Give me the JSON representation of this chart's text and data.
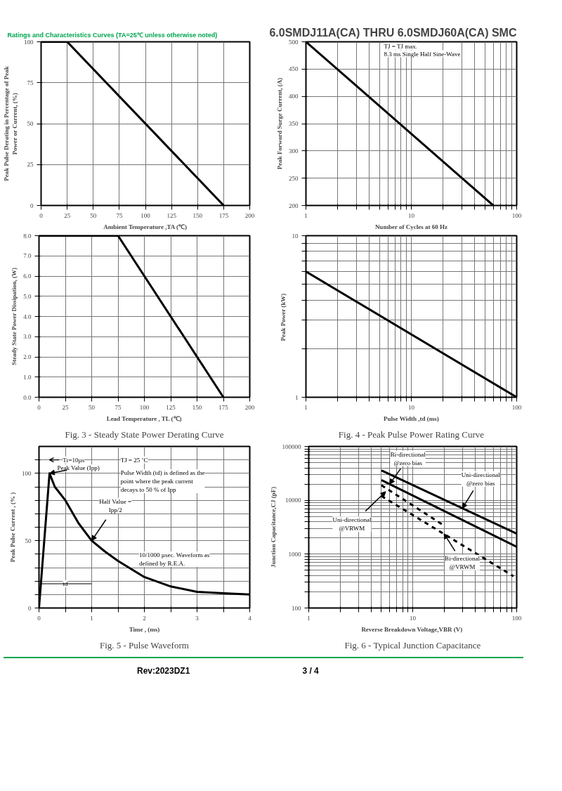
{
  "chart_data": [
    {
      "type": "line",
      "subtitle": "Ratings and Characteristics Curves (TA=25℃ unless otherwise noted)",
      "xlabel": "Ambient Temperature ,TA (℃)",
      "ylabel": "Peak Pulse Derating in Percentage of Peak Power or Current, (%)",
      "xlim": [
        0,
        200
      ],
      "xticks": [
        0,
        25,
        50,
        75,
        100,
        125,
        150,
        175,
        200
      ],
      "ylim": [
        0,
        100
      ],
      "yticks": [
        0,
        25,
        50,
        75,
        100
      ],
      "grid": true,
      "line_style": "solid",
      "series": [
        {
          "color": "#000000",
          "x": [
            0,
            25,
            175
          ],
          "values": [
            100,
            100,
            0
          ]
        }
      ]
    },
    {
      "type": "line",
      "title": "6.0SMDJ11A(CA) THRU 6.0SMDJ60A(CA) SMC",
      "xlabel": "Number of Cycles at 60 Hz",
      "ylabel": "Peak Forward Surge Current, (A)",
      "log": "x",
      "xlim": [
        1,
        100
      ],
      "xticks": [
        1,
        {
          "value": 2,
          "label": null
        },
        {
          "value": 3,
          "label": null
        },
        {
          "value": 4,
          "label": null
        },
        {
          "value": 5,
          "label": null
        },
        {
          "value": 6,
          "label": null
        },
        {
          "value": 7,
          "label": null
        },
        {
          "value": 8,
          "label": null
        },
        {
          "value": 9,
          "label": null
        },
        10,
        {
          "value": 20,
          "label": null
        },
        {
          "value": 30,
          "label": null
        },
        {
          "value": 40,
          "label": null
        },
        {
          "value": 50,
          "label": null
        },
        {
          "value": 60,
          "label": null
        },
        {
          "value": 70,
          "label": null
        },
        {
          "value": 80,
          "label": null
        },
        {
          "value": 90,
          "label": null
        },
        100
      ],
      "ylim": [
        200,
        500
      ],
      "yticks": [
        200,
        250,
        300,
        350,
        400,
        450,
        500
      ],
      "grid": true,
      "line_style": "solid",
      "annotations": [
        "TJ = TJ max.",
        "8.3 ms Single Half Sine-Wave"
      ],
      "series": [
        {
          "color": "#000000",
          "x": [
            1,
            60
          ],
          "values": [
            500,
            200
          ]
        }
      ]
    },
    {
      "type": "line",
      "title": "Fig. 3 - Steady State Power Derating Curve",
      "xlabel": "Lead Temperature , TL (℃)",
      "ylabel": "Steady State Power Dissipation, (W)",
      "xlim": [
        0,
        200
      ],
      "xticks": [
        0,
        25,
        50,
        75,
        100,
        125,
        150,
        175,
        200
      ],
      "ylim": [
        0,
        8
      ],
      "yticks": [
        {
          "value": 0,
          "label": "0.0"
        },
        {
          "value": 1,
          "label": "1.0"
        },
        {
          "value": 2,
          "label": "2.0"
        },
        {
          "value": 3,
          "label": "3.0"
        },
        {
          "value": 4,
          "label": "4.0"
        },
        {
          "value": 5,
          "label": "5.0"
        },
        {
          "value": 6,
          "label": "6.0"
        },
        {
          "value": 7,
          "label": "7.0"
        },
        {
          "value": 8,
          "label": "8.0"
        }
      ],
      "grid": true,
      "line_style": "solid",
      "series": [
        {
          "color": "#000000",
          "x": [
            0,
            75,
            175
          ],
          "values": [
            8,
            8,
            0
          ]
        }
      ]
    },
    {
      "type": "line",
      "title": "Fig. 4 - Peak Pulse Power Rating Curve",
      "xlabel": "Pulse Width ,td (ms)",
      "ylabel": "Peak Power  (kW)",
      "log": "xy",
      "xlim": [
        1,
        100
      ],
      "xticks": [
        1,
        {
          "value": 2,
          "label": null
        },
        {
          "value": 3,
          "label": null
        },
        {
          "value": 4,
          "label": null
        },
        {
          "value": 5,
          "label": null
        },
        {
          "value": 6,
          "label": null
        },
        {
          "value": 7,
          "label": null
        },
        {
          "value": 8,
          "label": null
        },
        {
          "value": 9,
          "label": null
        },
        10,
        {
          "value": 20,
          "label": null
        },
        {
          "value": 30,
          "label": null
        },
        {
          "value": 40,
          "label": null
        },
        {
          "value": 50,
          "label": null
        },
        {
          "value": 60,
          "label": null
        },
        {
          "value": 70,
          "label": null
        },
        {
          "value": 80,
          "label": null
        },
        {
          "value": 90,
          "label": null
        },
        100
      ],
      "ylim": [
        1,
        10
      ],
      "yticks": [
        1,
        {
          "value": 2,
          "label": null
        },
        {
          "value": 3,
          "label": null
        },
        {
          "value": 4,
          "label": null
        },
        {
          "value": 5,
          "label": null
        },
        {
          "value": 6,
          "label": null
        },
        {
          "value": 7,
          "label": null
        },
        {
          "value": 8,
          "label": null
        },
        {
          "value": 9,
          "label": null
        },
        10
      ],
      "grid": true,
      "line_style": "solid",
      "series": [
        {
          "color": "#000000",
          "x": [
            1,
            100
          ],
          "values": [
            6,
            1
          ]
        }
      ]
    },
    {
      "type": "line",
      "title": "Fig. 5 - Pulse Waveform",
      "xlabel": "Time , (ms)",
      "ylabel": "Peak Pulse Current , (% )",
      "xlim": [
        0,
        4
      ],
      "xticks": [
        0,
        {
          "value": 0.5,
          "label": null
        },
        1,
        {
          "value": 1.5,
          "label": null
        },
        2,
        {
          "value": 2.5,
          "label": null
        },
        3,
        {
          "value": 3.5,
          "label": null
        },
        4
      ],
      "ylim": [
        0,
        120
      ],
      "yticks": [
        0,
        {
          "value": 10,
          "label": null
        },
        {
          "value": 20,
          "label": null
        },
        {
          "value": 30,
          "label": null
        },
        {
          "value": 40,
          "label": null
        },
        50,
        {
          "value": 60,
          "label": null
        },
        {
          "value": 70,
          "label": null
        },
        {
          "value": 80,
          "label": null
        },
        {
          "value": 90,
          "label": null
        },
        100,
        {
          "value": 110,
          "label": null
        }
      ],
      "grid": true,
      "line_style": "solid",
      "annotations": [
        "Tr=10µs",
        "TJ = 25 ˚C",
        "Pulse Width (td) is defined as the point where the peak current decays to 50 % of Ipp",
        "10/1000 µsec. Waveform as defined by R.E.A.",
        "td",
        {
          "text": "Peak Value (Ipp)",
          "x": 0.2,
          "y": 100
        },
        {
          "text": "Half Value = Ipp/2",
          "x": 1,
          "y": 50
        }
      ],
      "series": [
        {
          "color": "#000000",
          "x": [
            0,
            0.2,
            0.3,
            0.5,
            0.75,
            1,
            1.25,
            1.5,
            2,
            2.5,
            3,
            3.5,
            4
          ],
          "values": [
            0,
            100,
            90,
            80,
            63,
            50,
            42,
            35,
            23,
            16,
            12,
            11,
            10
          ]
        }
      ]
    },
    {
      "type": "line",
      "title": "Fig. 6 - Typical Junction Capacitance",
      "xlabel": "Reverse  Breakdown Voltage,VBR (V)",
      "ylabel": "Junction Capacitance,CJ (pF)",
      "log": "xy",
      "xlim": [
        1,
        100
      ],
      "xticks": [
        1,
        {
          "value": 2,
          "label": null
        },
        {
          "value": 3,
          "label": null
        },
        {
          "value": 4,
          "label": null
        },
        {
          "value": 5,
          "label": null
        },
        {
          "value": 6,
          "label": null
        },
        {
          "value": 7,
          "label": null
        },
        {
          "value": 8,
          "label": null
        },
        {
          "value": 9,
          "label": null
        },
        10,
        {
          "value": 20,
          "label": null
        },
        {
          "value": 30,
          "label": null
        },
        {
          "value": 40,
          "label": null
        },
        {
          "value": 50,
          "label": null
        },
        {
          "value": 60,
          "label": null
        },
        {
          "value": 70,
          "label": null
        },
        {
          "value": 80,
          "label": null
        },
        {
          "value": 90,
          "label": null
        },
        100
      ],
      "ylim": [
        100,
        100000
      ],
      "yticks": [
        100,
        {
          "value": 200,
          "label": null
        },
        {
          "value": 300,
          "label": null
        },
        {
          "value": 400,
          "label": null
        },
        {
          "value": 500,
          "label": null
        },
        {
          "value": 600,
          "label": null
        },
        {
          "value": 700,
          "label": null
        },
        {
          "value": 800,
          "label": null
        },
        {
          "value": 900,
          "label": null
        },
        1000,
        {
          "value": 2000,
          "label": null
        },
        {
          "value": 3000,
          "label": null
        },
        {
          "value": 4000,
          "label": null
        },
        {
          "value": 5000,
          "label": null
        },
        {
          "value": 6000,
          "label": null
        },
        {
          "value": 7000,
          "label": null
        },
        {
          "value": 8000,
          "label": null
        },
        {
          "value": 9000,
          "label": null
        },
        10000,
        {
          "value": 20000,
          "label": null
        },
        {
          "value": 30000,
          "label": null
        },
        {
          "value": 40000,
          "label": null
        },
        {
          "value": 50000,
          "label": null
        },
        {
          "value": 60000,
          "label": null
        },
        {
          "value": 70000,
          "label": null
        },
        {
          "value": 80000,
          "label": null
        },
        {
          "value": 90000,
          "label": null
        },
        100000
      ],
      "grid": true,
      "annotations": [
        {
          "text": "Bi-directional @zero bias",
          "x": 6,
          "y": 20000
        },
        {
          "text": "Uni-directional @zero bias",
          "x": 30,
          "y": 7100
        },
        {
          "text": "Uni-directional @VRWM",
          "x": 5.5,
          "y": 14500
        },
        {
          "text": "Bi-directional @VRWM",
          "x": 20,
          "y": 2400
        },
        "Rev:2023DZ1",
        "3 / 4"
      ],
      "series": [
        {
          "color": "#000000",
          "line_style": "solid",
          "x": [
            5,
            100
          ],
          "values": [
            36000,
            2400
          ]
        },
        {
          "color": "#000000",
          "line_style": "solid",
          "x": [
            5,
            100
          ],
          "values": [
            23800,
            1370
          ]
        },
        {
          "color": "#000000",
          "line_style": "dashed",
          "x": [
            5,
            20
          ],
          "values": [
            19000,
            3400
          ]
        },
        {
          "color": "#000000",
          "line_style": "dashed",
          "x": [
            5,
            93
          ],
          "values": [
            12000,
            390
          ]
        }
      ]
    }
  ]
}
